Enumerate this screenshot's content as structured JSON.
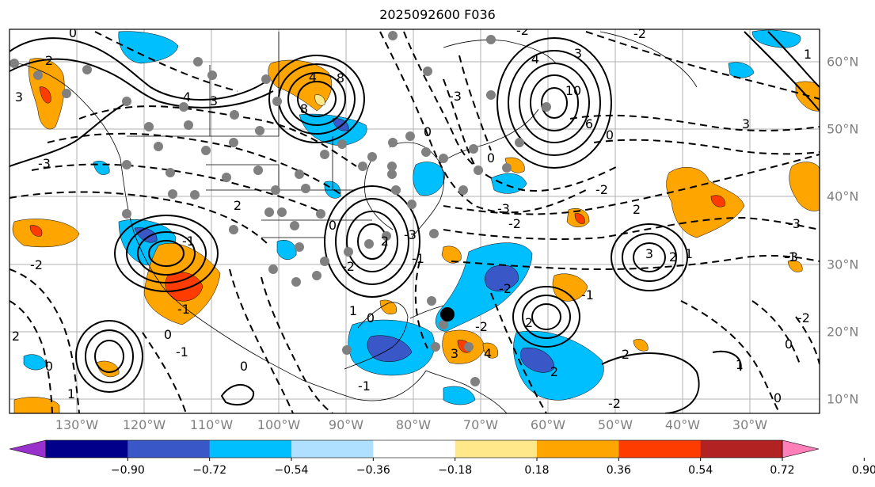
{
  "title": "2025092600 F036",
  "map": {
    "lon_labels": [
      "130°W",
      "120°W",
      "110°W",
      "100°W",
      "90°W",
      "80°W",
      "70°W",
      "60°W",
      "50°W",
      "40°W",
      "30°W"
    ],
    "lat_labels": [
      "60°N",
      "50°N",
      "40°N",
      "30°N",
      "20°N",
      "10°N"
    ],
    "contour_labels": [
      "0",
      "2",
      "3",
      "4",
      "3",
      "4",
      "8",
      "8",
      "-3",
      "-2",
      "4",
      "3",
      "10",
      "6",
      "3",
      "-2",
      "0",
      "-2",
      "-3",
      "-2",
      "-3",
      "-3",
      "2",
      "3",
      "-1",
      "-2",
      "-1",
      "-1",
      "2",
      "2",
      "3",
      "4",
      "1",
      "0",
      "-1",
      "1",
      "0",
      "-2",
      "0",
      "2",
      "2",
      "1",
      "-3",
      "2",
      "0",
      "-1",
      "0",
      "0",
      "1",
      "-2",
      "2",
      "-1",
      "0",
      "-2",
      "2",
      "-3",
      "-2",
      "-2",
      "0",
      "0",
      "1",
      "-1"
    ],
    "colorbar": {
      "ticks": [
        "−0.90",
        "−0.72",
        "−0.54",
        "−0.36",
        "−0.18",
        "0.18",
        "0.36",
        "0.54",
        "0.72",
        "0.90"
      ],
      "colors": [
        "#9932cc",
        "#00008b",
        "#3a57c8",
        "#00bfff",
        "#b0e0ff",
        "#ffffff",
        "#ffe88a",
        "#ffa500",
        "#ff3c00",
        "#b22222",
        "#ff7fb8"
      ]
    }
  }
}
